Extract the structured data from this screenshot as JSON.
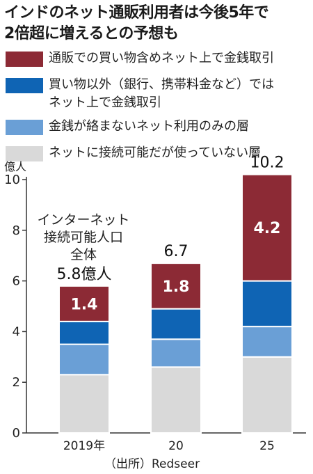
{
  "title_lines": [
    "インドのネット通販利用者は今後5年で",
    "2倍超に増えるとの予想も"
  ],
  "legend": [
    {
      "label_lines": [
        "通販での買い物含めネット上で金銭取引"
      ],
      "color": "#8c2a35"
    },
    {
      "label_lines": [
        "買い物以外（銀行、携帯料金など）では",
        "ネット上で金銭取引"
      ],
      "color": "#0f64b4"
    },
    {
      "label_lines": [
        "金銭が絡まないネット利用のみの層"
      ],
      "color": "#6a9fd6"
    },
    {
      "label_lines": [
        "ネットに接続可能だが使っていない層"
      ],
      "color": "#d9d9d9"
    }
  ],
  "unit_label": "億人",
  "annotation_lines": [
    "インターネット",
    "接続可能人口",
    "全体"
  ],
  "source": "（出所）Redseer",
  "chart_data": {
    "type": "bar",
    "stacked": true,
    "categories": [
      "2019年",
      "20",
      "25"
    ],
    "ylim": [
      0,
      10
    ],
    "yticks": [
      0,
      2,
      4,
      6,
      8,
      10
    ],
    "ylabel": "億人",
    "series": [
      {
        "name": "ネットに接続可能だが使っていない層",
        "color": "#d9d9d9",
        "values": [
          2.3,
          2.6,
          3.0
        ]
      },
      {
        "name": "金銭が絡まないネット利用のみの層",
        "color": "#6a9fd6",
        "values": [
          1.2,
          1.1,
          1.2
        ]
      },
      {
        "name": "買い物以外（銀行、携帯料金など）ではネット上で金銭取引",
        "color": "#0f64b4",
        "values": [
          0.9,
          1.2,
          1.8
        ]
      },
      {
        "name": "通販での買い物含めネット上で金銭取引",
        "color": "#8c2a35",
        "values": [
          1.4,
          1.8,
          4.2
        ]
      }
    ],
    "bar_labels": [
      "1.4",
      "1.8",
      "4.2"
    ],
    "totals": [
      "5.8億人",
      "6.7",
      "10.2"
    ],
    "total_values": [
      5.8,
      6.7,
      10.2
    ]
  }
}
